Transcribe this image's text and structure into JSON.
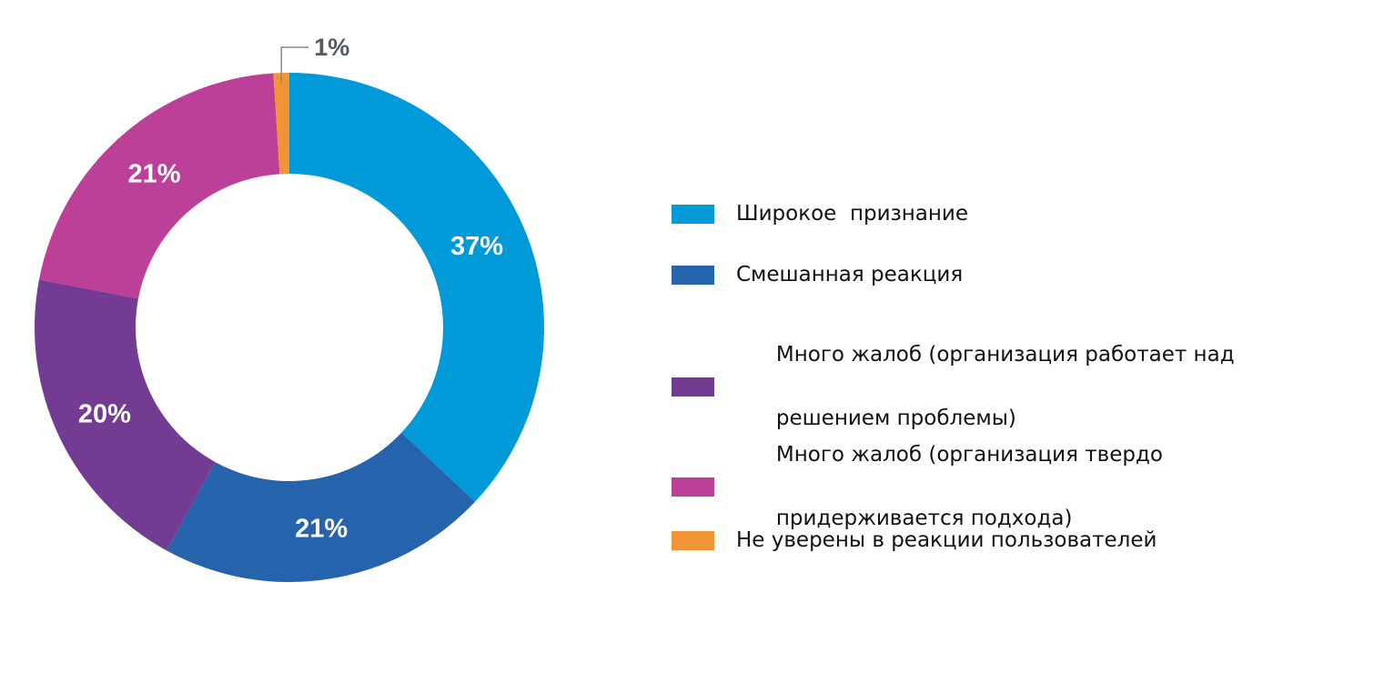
{
  "chart_data": {
    "type": "pie",
    "donut": true,
    "title": "",
    "series": [
      {
        "name": "Широкое  признание",
        "value": 37,
        "label": "37%",
        "color": "#009ad9"
      },
      {
        "name": "Смешанная реакция",
        "value": 21,
        "label": "21%",
        "color": "#2563ad"
      },
      {
        "name": "Много жалоб (организация работает над решением проблемы)",
        "value": 20,
        "label": "20%",
        "color": "#733b92"
      },
      {
        "name": "Много жалоб (организация твердо придерживается подхода)",
        "value": 21,
        "label": "21%",
        "color": "#bc3f98"
      },
      {
        "name": "Не уверены в реакции пользователей",
        "value": 1,
        "label": "1%",
        "color": "#f39434"
      }
    ],
    "legend_position": "right"
  },
  "legend": {
    "items": [
      {
        "lines": [
          "Широкое  признание"
        ]
      },
      {
        "lines": [
          "Смешанная реакция"
        ]
      },
      {
        "lines": [
          "Много жалоб (организация работает над",
          "решением проблемы)"
        ]
      },
      {
        "lines": [
          "Много жалоб (организация твердо",
          "придерживается подхода)"
        ]
      },
      {
        "lines": [
          "Не уверены в реакции пользователей"
        ]
      }
    ]
  }
}
